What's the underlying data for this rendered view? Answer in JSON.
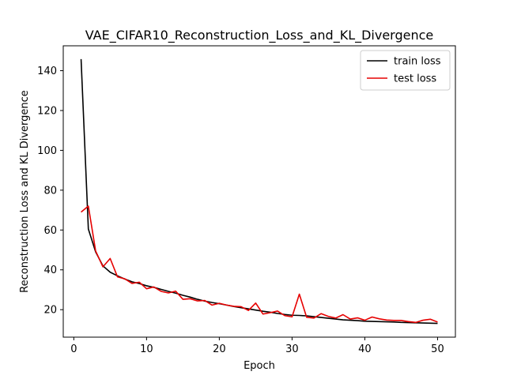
{
  "chart_data": {
    "type": "line",
    "title": "VAE_CIFAR10_Reconstruction_Loss_and_KL_Divergence",
    "xlabel": "Epoch",
    "ylabel": "Reconstruction Loss and KL Divergence",
    "xlim": [
      -1.45,
      52.45
    ],
    "ylim": [
      6.2,
      152.5
    ],
    "xticks": [
      0,
      10,
      20,
      30,
      40,
      50
    ],
    "yticks": [
      20,
      40,
      60,
      80,
      100,
      120,
      140
    ],
    "grid": false,
    "legend_position": "top-right",
    "x": [
      1,
      2,
      3,
      4,
      5,
      6,
      7,
      8,
      9,
      10,
      11,
      12,
      13,
      14,
      15,
      16,
      17,
      18,
      19,
      20,
      21,
      22,
      23,
      24,
      25,
      26,
      27,
      28,
      29,
      30,
      31,
      32,
      33,
      34,
      35,
      36,
      37,
      38,
      39,
      40,
      41,
      42,
      43,
      44,
      45,
      46,
      47,
      48,
      49,
      50
    ],
    "series": [
      {
        "name": "train loss",
        "color": "#000000",
        "values": [
          145.8,
          60.5,
          49.0,
          42.0,
          38.8,
          37.0,
          35.4,
          34.0,
          33.1,
          32.0,
          31.2,
          30.2,
          29.2,
          28.3,
          27.2,
          26.3,
          25.2,
          24.3,
          23.6,
          23.0,
          22.3,
          21.6,
          21.0,
          20.4,
          19.8,
          19.2,
          18.7,
          18.1,
          17.6,
          17.2,
          17.1,
          16.9,
          16.5,
          16.1,
          15.7,
          15.3,
          14.9,
          14.7,
          14.5,
          14.2,
          14.1,
          14.0,
          13.9,
          13.8,
          13.6,
          13.5,
          13.4,
          13.3,
          13.2,
          13.1
        ]
      },
      {
        "name": "test loss",
        "color": "#e60000",
        "values": [
          69.0,
          72.0,
          49.5,
          41.5,
          45.7,
          36.5,
          35.5,
          33.2,
          33.8,
          30.5,
          31.4,
          29.2,
          28.4,
          29.3,
          25.2,
          25.5,
          24.4,
          24.6,
          22.3,
          23.2,
          22.3,
          21.7,
          21.5,
          19.6,
          23.3,
          17.8,
          18.5,
          19.3,
          17.0,
          16.4,
          27.8,
          16.2,
          15.8,
          18.0,
          16.6,
          15.8,
          17.5,
          15.3,
          15.9,
          14.7,
          16.3,
          15.4,
          14.8,
          14.6,
          14.6,
          14.0,
          13.6,
          14.7,
          15.2,
          13.8
        ]
      }
    ]
  }
}
